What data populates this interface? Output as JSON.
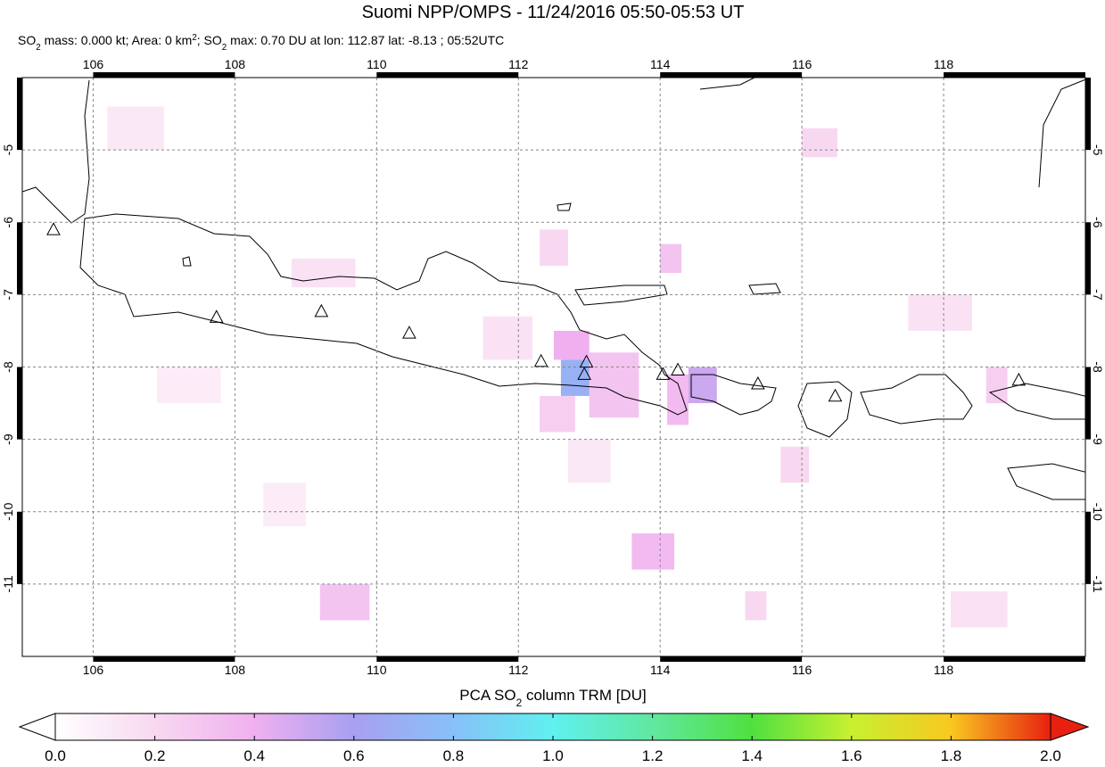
{
  "chart_data": {
    "type": "map",
    "title": "Suomi NPP/OMPS - 11/24/2016 05:50-05:53 UT",
    "subtitle": [
      {
        "text": "SO"
      },
      {
        "text": "2",
        "style": "sub"
      },
      {
        "text": " mass: 0.000 kt; Area: 0 km"
      },
      {
        "text": "2",
        "style": "sup"
      },
      {
        "text": "; SO"
      },
      {
        "text": "2",
        "style": "sub"
      },
      {
        "text": " max: 0.70 DU at lon: 112.87 lat: -8.13 ; 05:52UTC"
      }
    ],
    "xlim": [
      105,
      120
    ],
    "ylim": [
      -12,
      -4
    ],
    "xticks": [
      106,
      108,
      110,
      112,
      114,
      116,
      118
    ],
    "yticks": [
      -5,
      -6,
      -7,
      -8,
      -9,
      -10,
      -11
    ],
    "grid": true,
    "cells": [
      {
        "lon": [
          112.6,
          113.2
        ],
        "lat": [
          -7.9,
          -8.4
        ],
        "value": 0.7
      },
      {
        "lon": [
          112.5,
          113.0
        ],
        "lat": [
          -7.5,
          -7.9
        ],
        "value": 0.4
      },
      {
        "lon": [
          113.0,
          113.7
        ],
        "lat": [
          -7.8,
          -8.7
        ],
        "value": 0.3
      },
      {
        "lon": [
          114.4,
          114.8
        ],
        "lat": [
          -8.0,
          -8.5
        ],
        "value": 0.5
      },
      {
        "lon": [
          114.1,
          114.4
        ],
        "lat": [
          -8.1,
          -8.8
        ],
        "value": 0.35
      },
      {
        "lon": [
          113.6,
          114.2
        ],
        "lat": [
          -10.3,
          -10.8
        ],
        "value": 0.35
      },
      {
        "lon": [
          109.2,
          109.9
        ],
        "lat": [
          -11.0,
          -11.5
        ],
        "value": 0.3
      },
      {
        "lon": [
          112.3,
          112.7
        ],
        "lat": [
          -6.1,
          -6.6
        ],
        "value": 0.2
      },
      {
        "lon": [
          114.0,
          114.3
        ],
        "lat": [
          -6.3,
          -6.7
        ],
        "value": 0.3
      },
      {
        "lon": [
          116.0,
          116.5
        ],
        "lat": [
          -4.7,
          -5.1
        ],
        "value": 0.2
      },
      {
        "lon": [
          106.2,
          107.0
        ],
        "lat": [
          -4.4,
          -5.0
        ],
        "value": 0.12
      },
      {
        "lon": [
          106.9,
          107.8
        ],
        "lat": [
          -8.0,
          -8.5
        ],
        "value": 0.1
      },
      {
        "lon": [
          117.5,
          118.4
        ],
        "lat": [
          -7.0,
          -7.5
        ],
        "value": 0.15
      },
      {
        "lon": [
          115.2,
          115.5
        ],
        "lat": [
          -11.1,
          -11.5
        ],
        "value": 0.2
      },
      {
        "lon": [
          115.7,
          116.1
        ],
        "lat": [
          -9.1,
          -9.6
        ],
        "value": 0.2
      },
      {
        "lon": [
          118.1,
          118.9
        ],
        "lat": [
          -11.1,
          -11.6
        ],
        "value": 0.15
      },
      {
        "lon": [
          118.6,
          118.9
        ],
        "lat": [
          -8.0,
          -8.5
        ],
        "value": 0.25
      },
      {
        "lon": [
          108.8,
          109.7
        ],
        "lat": [
          -6.5,
          -6.9
        ],
        "value": 0.15
      },
      {
        "lon": [
          111.5,
          112.2
        ],
        "lat": [
          -7.3,
          -7.9
        ],
        "value": 0.15
      },
      {
        "lon": [
          112.3,
          112.8
        ],
        "lat": [
          -8.4,
          -8.9
        ],
        "value": 0.25
      },
      {
        "lon": [
          112.7,
          113.3
        ],
        "lat": [
          -9.0,
          -9.6
        ],
        "value": 0.12
      },
      {
        "lon": [
          108.4,
          109.0
        ],
        "lat": [
          -9.6,
          -10.2
        ],
        "value": 0.1
      }
    ],
    "volcanoes": [
      {
        "lon": 105.44,
        "lat": -6.11
      },
      {
        "lon": 107.74,
        "lat": -7.32
      },
      {
        "lon": 109.22,
        "lat": -7.24
      },
      {
        "lon": 110.46,
        "lat": -7.54
      },
      {
        "lon": 112.32,
        "lat": -7.93
      },
      {
        "lon": 112.96,
        "lat": -7.94
      },
      {
        "lon": 112.93,
        "lat": -8.11
      },
      {
        "lon": 114.04,
        "lat": -8.11
      },
      {
        "lon": 114.25,
        "lat": -8.05
      },
      {
        "lon": 115.38,
        "lat": -8.24
      },
      {
        "lon": 116.47,
        "lat": -8.41
      },
      {
        "lon": 119.06,
        "lat": -8.19
      }
    ],
    "colorbar": {
      "label": [
        {
          "text": "PCA SO"
        },
        {
          "text": "2",
          "style": "sub"
        },
        {
          "text": " column TRM [DU]"
        }
      ],
      "lim": [
        0,
        2
      ],
      "ticks": [
        {
          "value": 0,
          "label": "0.0"
        },
        {
          "value": 0.2,
          "label": "0.2"
        },
        {
          "value": 0.4,
          "label": "0.4"
        },
        {
          "value": 0.6,
          "label": "0.6"
        },
        {
          "value": 0.8,
          "label": "0.8"
        },
        {
          "value": 1,
          "label": "1.0"
        },
        {
          "value": 1.2,
          "label": "1.2"
        },
        {
          "value": 1.4,
          "label": "1.4"
        },
        {
          "value": 1.6,
          "label": "1.6"
        },
        {
          "value": 1.8,
          "label": "1.8"
        },
        {
          "value": 2,
          "label": "2.0"
        }
      ],
      "colorscale": [
        [
          0,
          "#ffffff"
        ],
        [
          0.2,
          "#f8d8f0"
        ],
        [
          0.4,
          "#f0b0f0"
        ],
        [
          0.6,
          "#a8a0f0"
        ],
        [
          0.8,
          "#88c0f8"
        ],
        [
          1,
          "#60f0f0"
        ],
        [
          1.2,
          "#60e8a0"
        ],
        [
          1.4,
          "#50e040"
        ],
        [
          1.6,
          "#c8f030"
        ],
        [
          1.8,
          "#f8c820"
        ],
        [
          2,
          "#e82010"
        ]
      ]
    }
  }
}
